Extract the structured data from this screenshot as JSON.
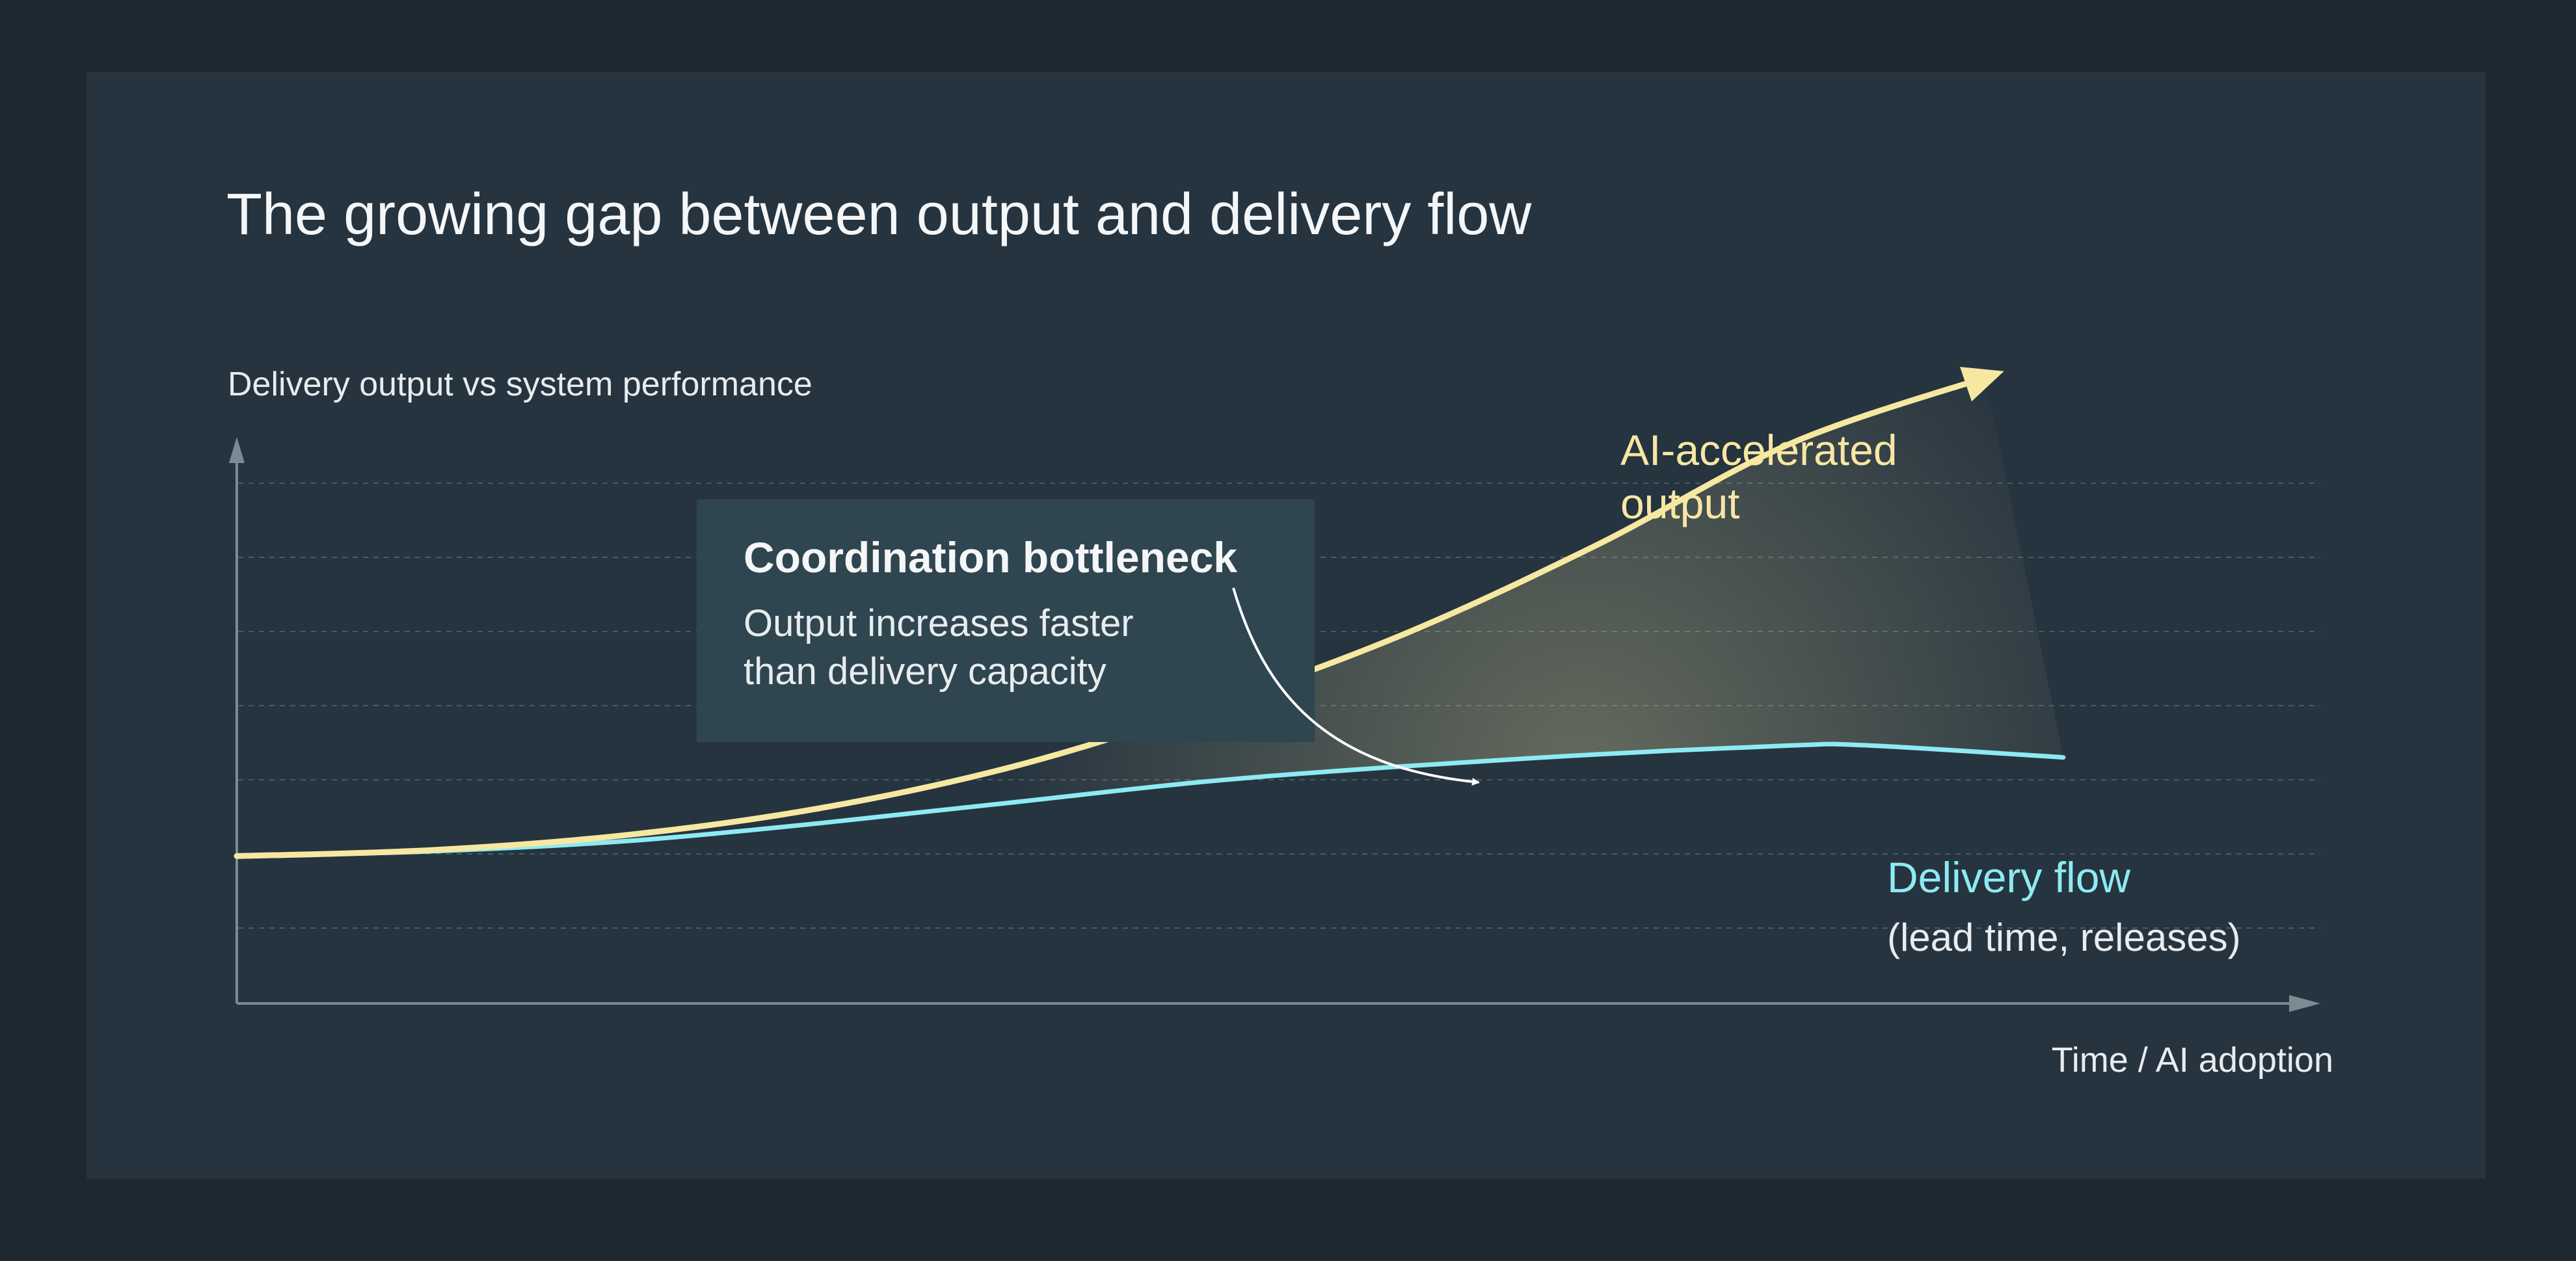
{
  "chart_data": {
    "type": "line",
    "title": "The growing gap between output and delivery flow",
    "ylabel": "Delivery output vs  system performance",
    "xlabel": "Time / AI adoption",
    "xlim": [
      0,
      10
    ],
    "ylim": [
      0,
      10
    ],
    "grid": true,
    "series": [
      {
        "name": "AI-accelerated output",
        "color": "#f6e8a0",
        "x": [
          0,
          1,
          2,
          3,
          4,
          5,
          6,
          7,
          8,
          9
        ],
        "y": [
          1.3,
          1.4,
          1.65,
          2.1,
          2.8,
          3.8,
          5.0,
          6.5,
          8.2,
          9.3
        ]
      },
      {
        "name": "Delivery flow",
        "color": "#8eeaf2",
        "x": [
          0,
          1,
          2,
          3,
          4,
          5,
          6,
          7,
          8,
          8.4,
          9.4
        ],
        "y": [
          1.3,
          1.38,
          1.55,
          1.85,
          2.2,
          2.55,
          2.8,
          3.0,
          3.15,
          3.15,
          2.95
        ]
      }
    ],
    "labels": {
      "ai_line1": "AI-accelerated",
      "ai_line2": "output",
      "delivery_line1": "Delivery flow",
      "delivery_line2": "(lead time, releases)"
    },
    "callout": {
      "title": "Coordination bottleneck",
      "line1": "Output increases faster",
      "line2": "than delivery capacity"
    },
    "colors": {
      "background": "#1d2830",
      "panel": "#263440",
      "callout_box": "#2f4550",
      "axis": "#7b8a93",
      "grid": "#4a5a64"
    }
  }
}
